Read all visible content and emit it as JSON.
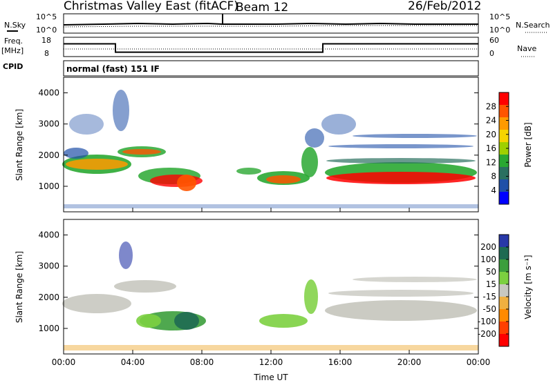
{
  "header": {
    "station": "Christmas Valley East (fitACF)",
    "beam": "Beam 12",
    "date": "26/Feb/2012"
  },
  "panel_labels": {
    "nsky": "N.Sky",
    "nsearch": "N.Search",
    "freq": "Freq.",
    "freq_unit": "[MHz]",
    "nave": "Nave",
    "cpid": "CPID",
    "cpid_value": "normal (fast) 151 IF",
    "noise_left_hi": "10^5",
    "noise_left_lo": "10^0",
    "noise_right_hi": "10^5",
    "noise_right_lo": "10^0",
    "freq_ticks": [
      "18",
      "8"
    ],
    "nave_ticks": [
      "60",
      "0"
    ]
  },
  "chart_data": [
    {
      "type": "line",
      "name": "frequency",
      "ylim": [
        8,
        18
      ],
      "x_hours": [
        0,
        3,
        3,
        15,
        15,
        24
      ],
      "values": [
        14.6,
        14.6,
        10.3,
        10.3,
        14.6,
        14.6
      ]
    },
    {
      "type": "heatmap",
      "name": "power",
      "xlabel": "",
      "ylabel": "Slant Range [km]",
      "x_ticks": [
        "00:00",
        "04:00",
        "08:00",
        "12:00",
        "16:00",
        "20:00",
        "00:00"
      ],
      "y_ticks": [
        "1000",
        "2000",
        "3000",
        "4000"
      ],
      "ylim": [
        180,
        4500
      ],
      "xlim": [
        0,
        24
      ],
      "colorbar_label": "Power [dB]",
      "colorbar_ticks": [
        "28",
        "24",
        "20",
        "16",
        "12",
        "8",
        "4"
      ],
      "colorbar_colors": [
        "#ff0000",
        "#ff5500",
        "#ff9a00",
        "#f6d400",
        "#9fd000",
        "#2aa832",
        "#2b7060",
        "#2050a8",
        "#0000ff"
      ]
    },
    {
      "type": "heatmap",
      "name": "velocity",
      "xlabel": "Time UT",
      "ylabel": "Slant Range [km]",
      "x_ticks": [
        "00:00",
        "04:00",
        "08:00",
        "12:00",
        "16:00",
        "20:00",
        "00:00"
      ],
      "y_ticks": [
        "1000",
        "2000",
        "3000",
        "4000"
      ],
      "ylim": [
        180,
        4500
      ],
      "xlim": [
        0,
        24
      ],
      "colorbar_label": "Velocity [m s⁻¹]",
      "colorbar_ticks": [
        "200",
        "100",
        "50",
        "15",
        "-15",
        "-50",
        "-100",
        "-200"
      ],
      "colorbar_colors": [
        "#2838a8",
        "#1e6a52",
        "#3c9e3c",
        "#7cd040",
        "#c8c8c0",
        "#f0b040",
        "#ff8a00",
        "#ff4000",
        "#ff0000"
      ]
    }
  ]
}
